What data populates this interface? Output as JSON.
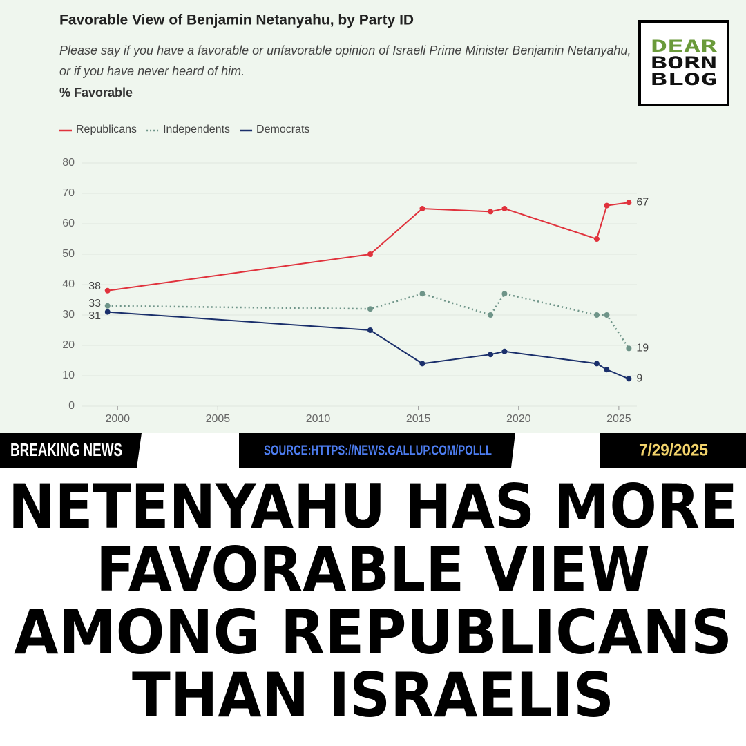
{
  "chart_data": {
    "type": "line",
    "title": "Favorable View of Benjamin Netanyahu, by Party ID",
    "subtitle": "Please say if you have a favorable or unfavorable opinion of Israeli Prime Minister Benjamin Netanyahu, or if you have never heard of him.",
    "y_label": "% Favorable",
    "x": [
      1999.5,
      2012.6,
      2015.2,
      2018.6,
      2019.3,
      2023.9,
      2024.4,
      2025.5
    ],
    "series": [
      {
        "name": "Republicans",
        "color": "#e0323c",
        "style": "solid",
        "values": [
          38,
          50,
          65,
          64,
          65,
          55,
          66,
          67
        ]
      },
      {
        "name": "Independents",
        "color": "#6e9488",
        "style": "dotted",
        "values": [
          33,
          32,
          37,
          30,
          37,
          30,
          30,
          19
        ]
      },
      {
        "name": "Democrats",
        "color": "#1a2f6b",
        "style": "solid",
        "values": [
          31,
          25,
          14,
          17,
          18,
          14,
          12,
          9
        ]
      }
    ],
    "xlim": [
      1998.2,
      2025.9
    ],
    "xticks": [
      2000,
      2005,
      2010,
      2015,
      2020,
      2025
    ],
    "ylim": [
      0,
      80
    ],
    "yticks": [
      0,
      10,
      20,
      30,
      40,
      50,
      60,
      70,
      80
    ],
    "grid": true,
    "legend": "top-left"
  },
  "logo": [
    "DEAR",
    "BORN",
    "BLOG"
  ],
  "banner": {
    "label": "BREAKING NEWS",
    "source": "SOURCE:HTTPS://NEWS.GALLUP.COM/POLLL",
    "date": "7/29/2025"
  },
  "headline": [
    "NETENYAHU HAS MORE",
    "FAVORABLE VIEW",
    "AMONG REPUBLICANS",
    "THAN ISRAELIS"
  ]
}
